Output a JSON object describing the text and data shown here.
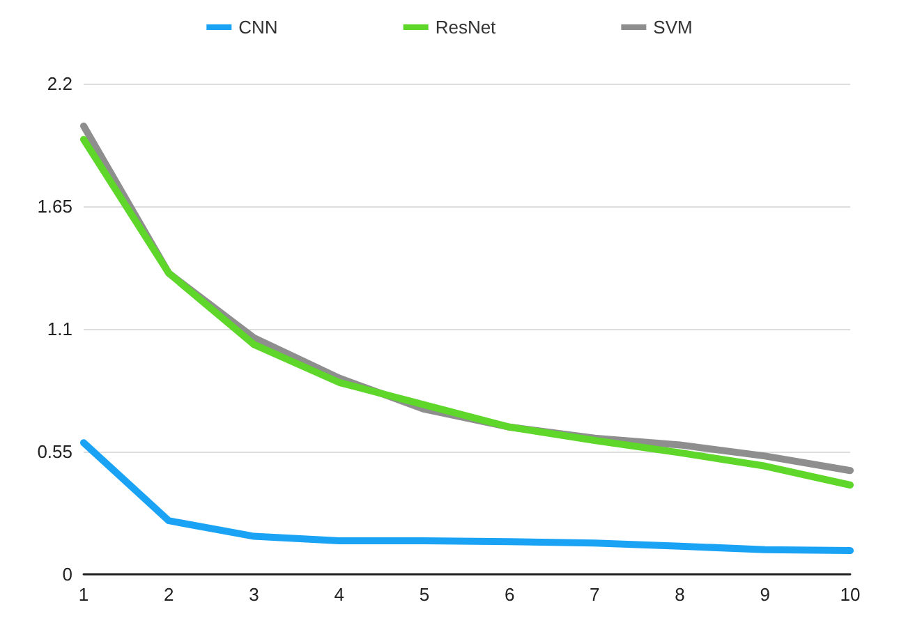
{
  "chart_data": {
    "type": "line",
    "categories": [
      "1",
      "2",
      "3",
      "4",
      "5",
      "6",
      "7",
      "8",
      "9",
      "10"
    ],
    "series": [
      {
        "name": "CNN",
        "color": "#1aa3f5",
        "values": [
          0.59,
          0.24,
          0.17,
          0.15,
          0.15,
          0.146,
          0.14,
          0.126,
          0.11,
          0.106
        ]
      },
      {
        "name": "ResNet",
        "color": "#5ed62a",
        "values": [
          1.95,
          1.35,
          1.03,
          0.86,
          0.76,
          0.66,
          0.6,
          0.545,
          0.485,
          0.4
        ]
      },
      {
        "name": "SVM",
        "color": "#8e8e8e",
        "values": [
          2.01,
          1.35,
          1.06,
          0.88,
          0.74,
          0.66,
          0.61,
          0.58,
          0.53,
          0.465
        ]
      }
    ],
    "ylim": [
      0,
      2.2
    ],
    "yticks": [
      0,
      0.55,
      1.1,
      1.65,
      2.2
    ],
    "grid": "y",
    "legend": "top",
    "marker": "none",
    "line_style": "solid"
  }
}
